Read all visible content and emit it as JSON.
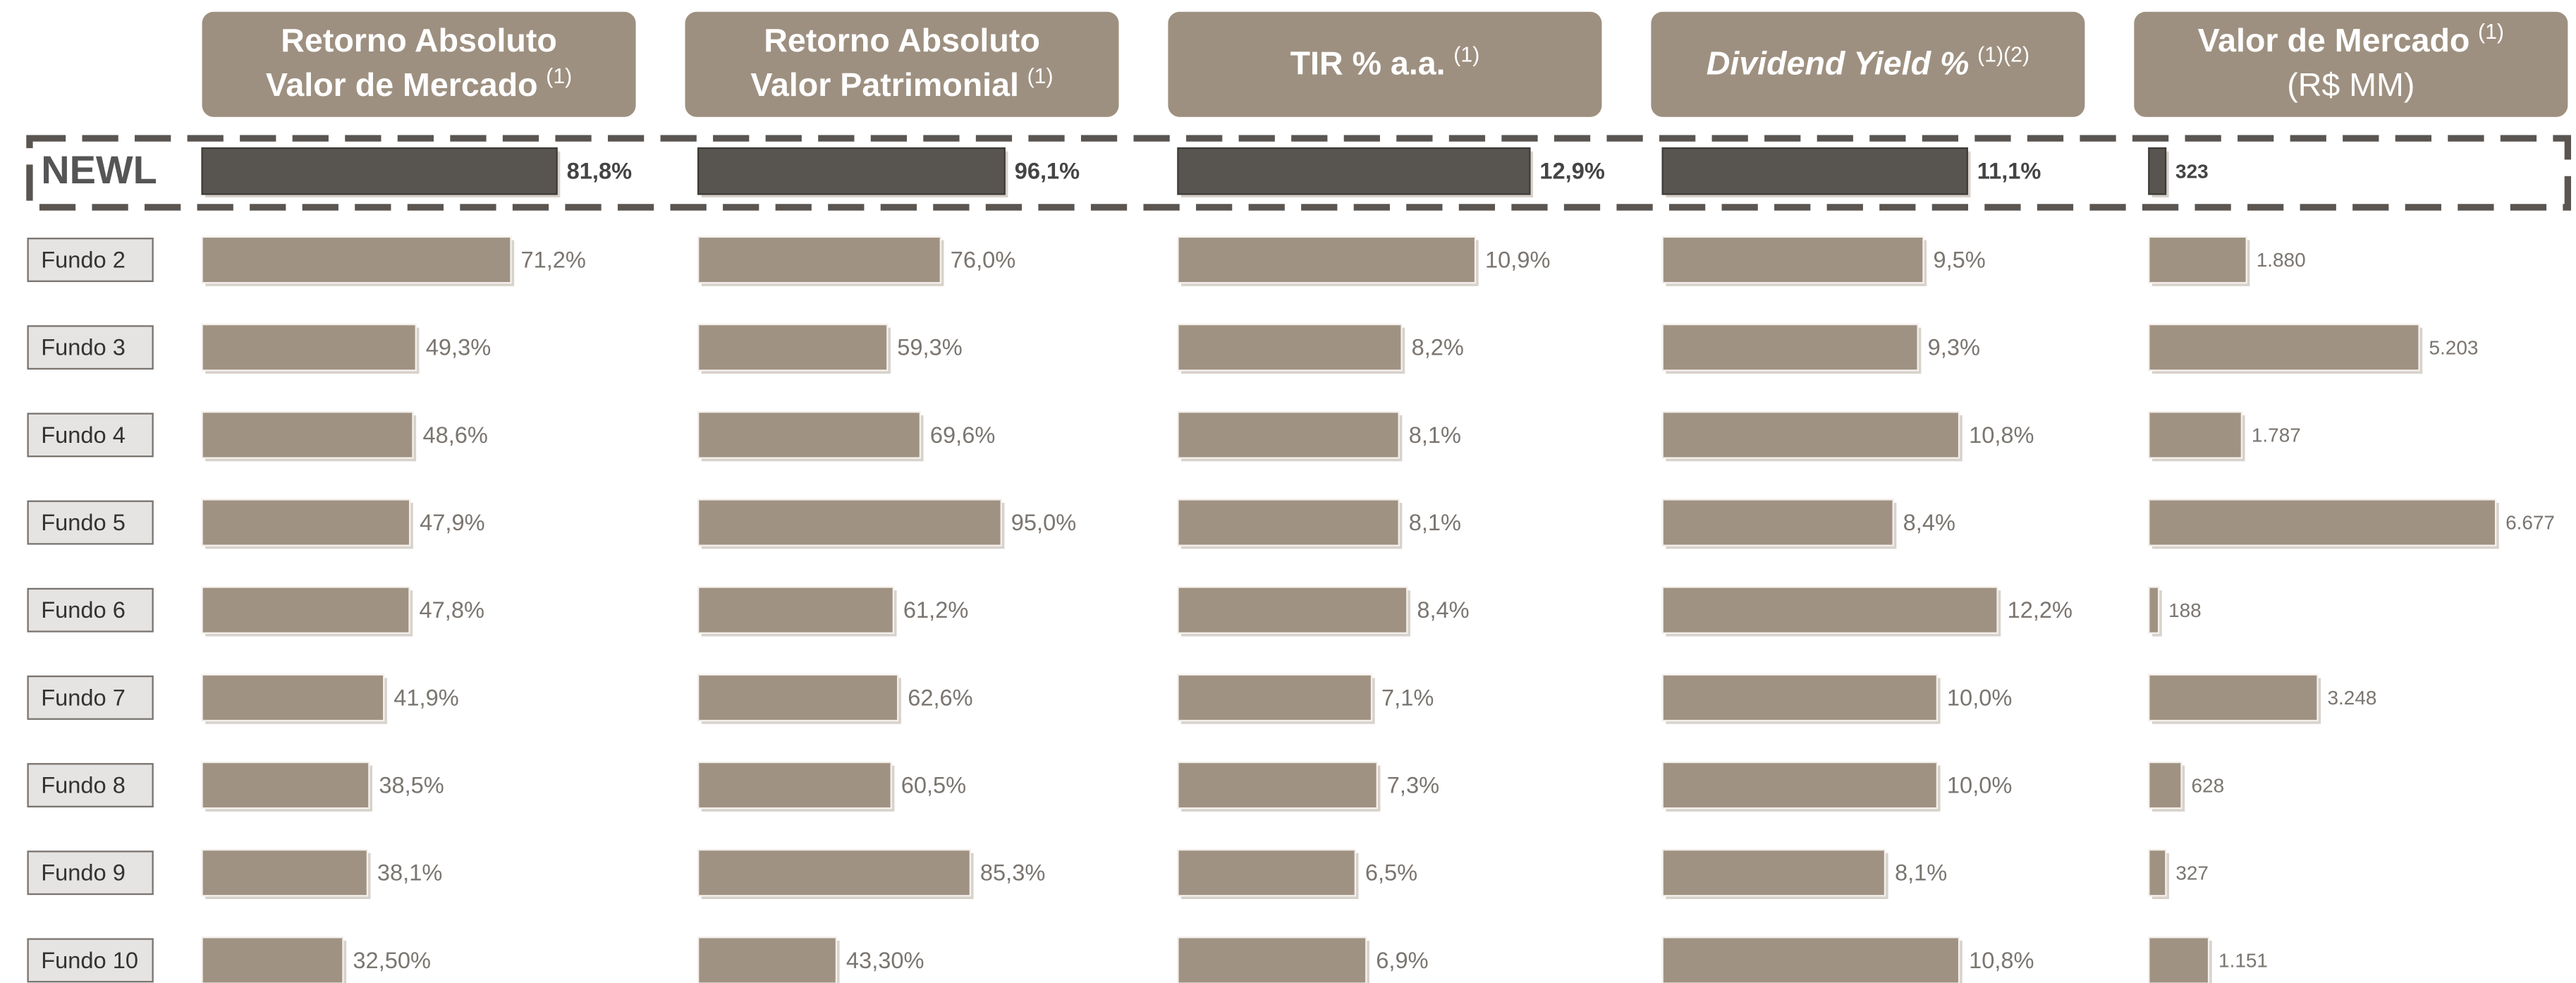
{
  "chart_data": {
    "type": "bar",
    "categories": [
      "NEWL",
      "Fundo 2",
      "Fundo 3",
      "Fundo 4",
      "Fundo 5",
      "Fundo 6",
      "Fundo 7",
      "Fundo 8",
      "Fundo 9",
      "Fundo 10"
    ],
    "color": "#a09282",
    "highlight_color": "#58544f",
    "highlight_index": 0,
    "series": [
      {
        "title": [
          {
            "text": "Retorno Absoluto"
          },
          {
            "text": "Valor de Mercado",
            "note": "(1)"
          }
        ],
        "xlim": [
          0,
          100
        ],
        "values": [
          81.8,
          71.2,
          49.3,
          48.6,
          47.9,
          47.8,
          41.9,
          38.5,
          38.1,
          32.5
        ],
        "value_labels": [
          "81,8%",
          "71,2%",
          "49,3%",
          "48,6%",
          "47,9%",
          "47,8%",
          "41,9%",
          "38,5%",
          "38,1%",
          "32,50%"
        ]
      },
      {
        "title": [
          {
            "text": "Retorno Absoluto"
          },
          {
            "text": "Valor Patrimonial",
            "note": "(1)"
          }
        ],
        "xlim": [
          0,
          136
        ],
        "values": [
          96.1,
          76.0,
          59.3,
          69.6,
          95.0,
          61.2,
          62.6,
          60.5,
          85.3,
          43.3
        ],
        "value_labels": [
          "96,1%",
          "76,0%",
          "59,3%",
          "69,6%",
          "95,0%",
          "61,2%",
          "62,6%",
          "60,5%",
          "85,3%",
          "43,30%"
        ]
      },
      {
        "title": [
          {
            "text": "TIR % a.a.",
            "note": "(1)"
          }
        ],
        "xlim": [
          0,
          15.9
        ],
        "values": [
          12.9,
          10.9,
          8.2,
          8.1,
          8.1,
          8.4,
          7.1,
          7.3,
          6.5,
          6.9
        ],
        "value_labels": [
          "12,9%",
          "10,9%",
          "8,2%",
          "8,1%",
          "8,1%",
          "8,4%",
          "7,1%",
          "7,3%",
          "6,5%",
          "6,9%"
        ]
      },
      {
        "title": [
          {
            "text": "Dividend Yield %",
            "note": "(1)(2)"
          }
        ],
        "italic": true,
        "xlim": [
          0,
          15.8
        ],
        "values": [
          11.1,
          9.5,
          9.3,
          10.8,
          8.4,
          12.2,
          10.0,
          10.0,
          8.1,
          10.8
        ],
        "value_labels": [
          "11,1%",
          "9,5%",
          "9,3%",
          "10,8%",
          "8,4%",
          "12,2%",
          "10,0%",
          "10,0%",
          "8,1%",
          "10,8%"
        ]
      },
      {
        "title": [
          {
            "text": "Valor de Mercado",
            "note": "(1)"
          },
          {
            "text": "(R$ MM)",
            "weight": "normal"
          }
        ],
        "xlim": [
          0,
          8350
        ],
        "values": [
          323,
          1880,
          5203,
          1787,
          6677,
          188,
          3248,
          628,
          327,
          1151
        ],
        "value_labels": [
          "323",
          "1.880",
          "5.203",
          "1.787",
          "6.677",
          "188",
          "3.248",
          "628",
          "327",
          "1.151"
        ]
      }
    ]
  }
}
